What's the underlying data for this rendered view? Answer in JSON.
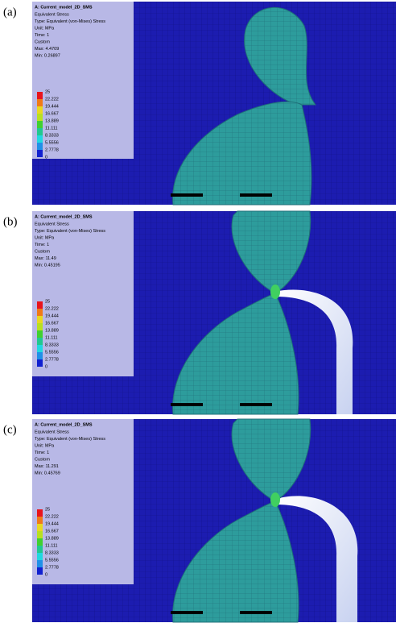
{
  "panels": [
    {
      "label": "(a)",
      "legend": {
        "title": "A: Current_model_2D_SMS",
        "lines": [
          "Equivalent Stress",
          "Type: Equivalent (von-Mises) Stress",
          "Unit: MPa",
          "Time: 1",
          "Custom",
          "Max: 4.4709",
          "Min: 0.26897"
        ]
      },
      "scale": [
        "25",
        "22.222",
        "19.444",
        "16.667",
        "13.889",
        "11.111",
        "8.3333",
        "5.5556",
        "2.7778",
        "0"
      ]
    },
    {
      "label": "(b)",
      "legend": {
        "title": "A: Current_model_2D_SMS",
        "lines": [
          "Equivalent Stress",
          "Type: Equivalent (von-Mises) Stress",
          "Unit: MPa",
          "Time: 1",
          "Custom",
          "Max: 11.49",
          "Min: 0.45195"
        ]
      },
      "scale": [
        "25",
        "22.222",
        "19.444",
        "16.667",
        "13.889",
        "11.111",
        "8.3333",
        "5.5556",
        "2.7778",
        "0"
      ]
    },
    {
      "label": "(c)",
      "legend": {
        "title": "A: Current_model_2D_SMS",
        "lines": [
          "Equivalent Stress",
          "Type: Equivalent (von-Mises) Stress",
          "Unit: MPa",
          "Time: 1",
          "Custom",
          "Max: 11.291",
          "Min: 0.45769"
        ]
      },
      "scale": [
        "25",
        "22.222",
        "19.444",
        "16.667",
        "13.889",
        "11.111",
        "8.3333",
        "5.5556",
        "2.7778",
        "0"
      ]
    }
  ]
}
